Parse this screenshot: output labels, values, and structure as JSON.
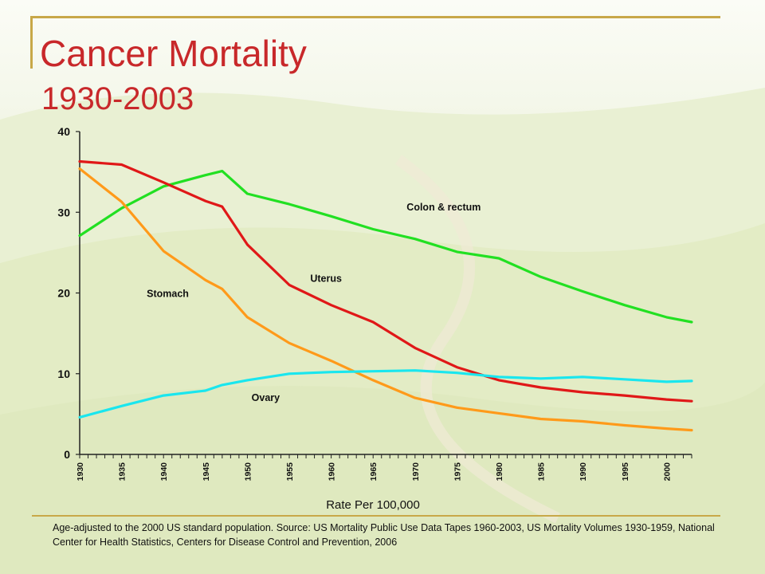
{
  "slide": {
    "title": "Cancer Mortality",
    "subtitle": "1930-2003",
    "footnote": "Age-adjusted to the 2000 US standard population. Source: US Mortality Public Use Data Tapes 1960-2003, US Mortality Volumes 1930-1959, National Center for Health Statistics, Centers for Disease Control and Prevention, 2006",
    "accent_color": "#c8282a"
  },
  "chart_data": {
    "type": "line",
    "title": "",
    "xlabel": "Rate Per 100,000",
    "ylabel": "",
    "xlim": [
      1930,
      2003
    ],
    "ylim": [
      0,
      40
    ],
    "yticks": [
      0,
      10,
      20,
      30,
      40
    ],
    "xtick_labels": [
      "1930",
      "1935",
      "1940",
      "1945",
      "1950",
      "1955",
      "1960",
      "1965",
      "1970",
      "1975",
      "1980",
      "1985",
      "1990",
      "1995",
      "2000"
    ],
    "grid": false,
    "legend": "none",
    "x": [
      1930,
      1935,
      1940,
      1945,
      1947,
      1950,
      1955,
      1960,
      1965,
      1970,
      1975,
      1980,
      1985,
      1990,
      1995,
      2000,
      2003
    ],
    "series": [
      {
        "name": "Colon & rectum",
        "color": "#22e022",
        "label_pos": {
          "x": 1969,
          "y": 30.2
        },
        "values": [
          27.1,
          30.5,
          33.2,
          34.6,
          35.1,
          32.3,
          31.0,
          29.5,
          27.9,
          26.7,
          25.1,
          24.3,
          22.0,
          20.2,
          18.5,
          17.0,
          16.4
        ]
      },
      {
        "name": "Uterus",
        "color": "#e01818",
        "label_pos": {
          "x": 1957.5,
          "y": 21.4
        },
        "values": [
          36.3,
          35.9,
          33.7,
          31.4,
          30.7,
          26.0,
          21.0,
          18.5,
          16.4,
          13.2,
          10.8,
          9.2,
          8.3,
          7.7,
          7.3,
          6.8,
          6.6
        ]
      },
      {
        "name": "Stomach",
        "color": "#ff9a1a",
        "label_pos": {
          "x": 1938,
          "y": 19.5
        },
        "values": [
          35.4,
          31.3,
          25.2,
          21.6,
          20.5,
          17.0,
          13.8,
          11.6,
          9.2,
          7.0,
          5.8,
          5.1,
          4.4,
          4.1,
          3.6,
          3.2,
          3.0
        ]
      },
      {
        "name": "Ovary",
        "color": "#1ae6ee",
        "label_pos": {
          "x": 1950.5,
          "y": 6.6
        },
        "values": [
          4.6,
          6.0,
          7.3,
          7.9,
          8.6,
          9.2,
          10.0,
          10.2,
          10.3,
          10.4,
          10.1,
          9.6,
          9.4,
          9.6,
          9.3,
          9.0,
          9.1
        ]
      }
    ]
  }
}
